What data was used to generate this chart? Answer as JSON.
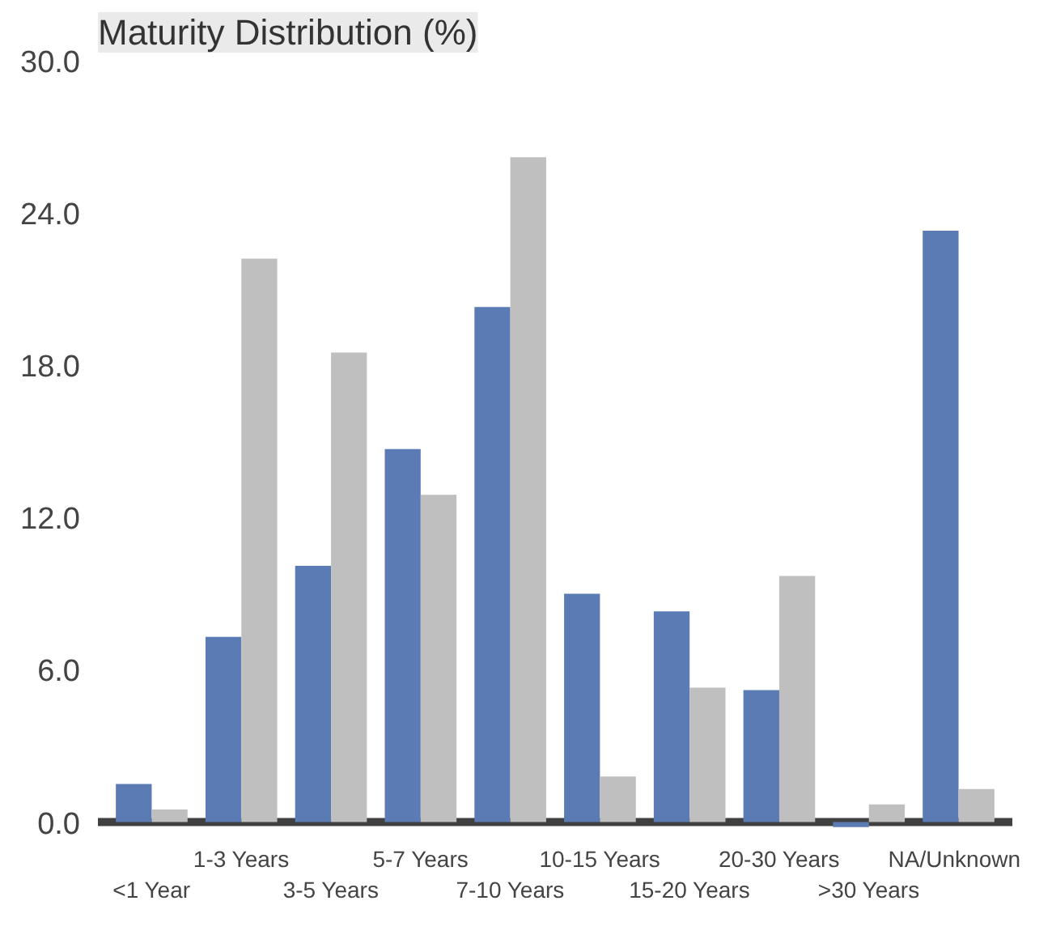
{
  "chart_data": {
    "type": "bar",
    "title": "Maturity Distribution (%)",
    "categories": [
      "<1 Year",
      "1-3 Years",
      "3-5 Years",
      "5-7 Years",
      "7-10 Years",
      "10-15 Years",
      "15-20 Years",
      "20-30 Years",
      ">30 Years",
      "NA/Unknown"
    ],
    "series": [
      {
        "color": "#5b7bb4",
        "values": [
          1.5,
          7.3,
          10.1,
          14.7,
          20.3,
          9.0,
          8.3,
          5.2,
          -0.2,
          23.3
        ]
      },
      {
        "color": "#bfbfbf",
        "values": [
          0.5,
          22.2,
          18.5,
          12.9,
          26.2,
          1.8,
          5.3,
          9.7,
          0.7,
          1.3
        ]
      }
    ],
    "ylim": [
      -0.3,
      30
    ],
    "yticks": [
      {
        "value": 0,
        "label": "0.0"
      },
      {
        "value": 6,
        "label": "6.0"
      },
      {
        "value": 12,
        "label": "12.0"
      },
      {
        "value": 18,
        "label": "18.0"
      },
      {
        "value": 24,
        "label": "24.0"
      },
      {
        "value": 30,
        "label": "30.0"
      }
    ],
    "grid": false
  }
}
